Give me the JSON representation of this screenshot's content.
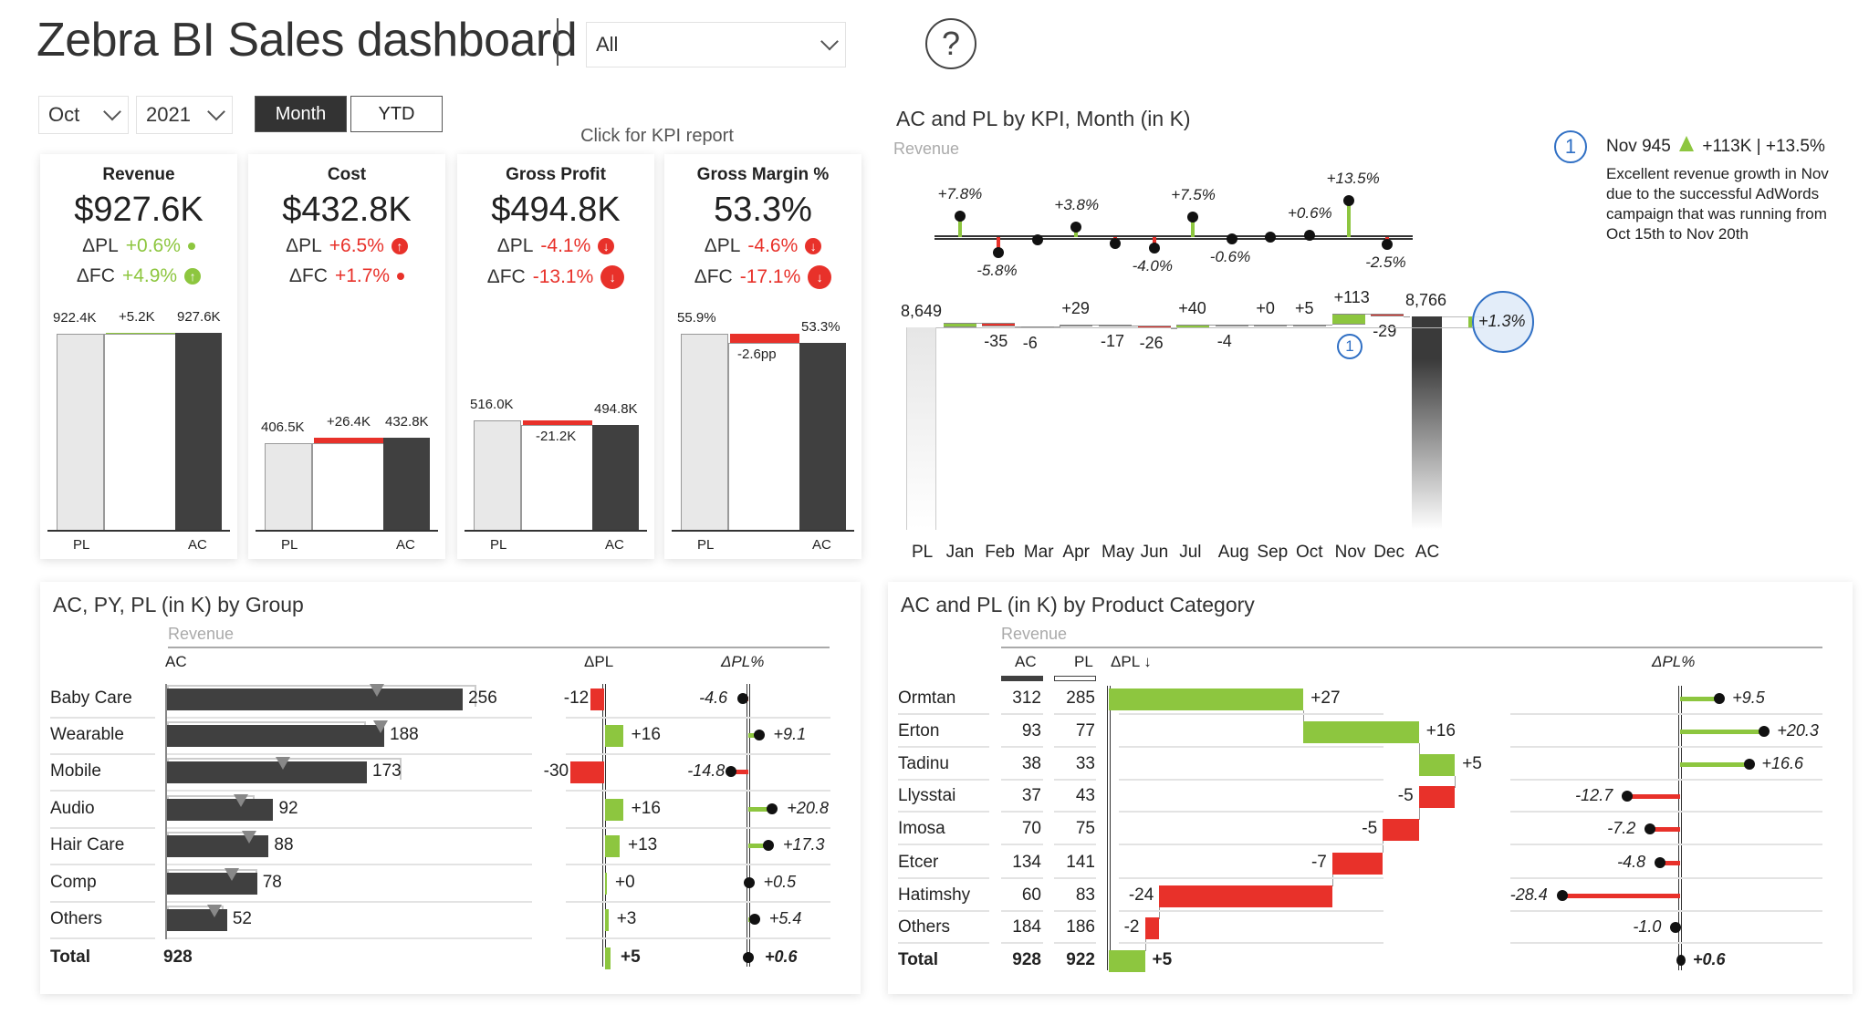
{
  "header": {
    "title": "Zebra BI Sales dashboard",
    "filter_value": "All",
    "help_glyph": "?",
    "month_value": "Oct",
    "year_value": "2021",
    "toggle_month": "Month",
    "toggle_ytd": "YTD",
    "kpi_link": "Click for KPI report"
  },
  "colors": {
    "positive": "#8dc63f",
    "negative": "#e8312a",
    "actual": "#404040",
    "plan": "#e8e8e8",
    "highlight": "#2f6fc4"
  },
  "kpis": [
    {
      "title": "Revenue",
      "value": "$927.6K",
      "dpl_label": "ΔPL",
      "dpl": "+0.6%",
      "dpl_sign": "pos",
      "dpl_icon": "dot-icon",
      "dfc_label": "ΔFC",
      "dfc": "+4.9%",
      "dfc_sign": "pos",
      "dfc_icon": "arrow-up-icon",
      "chart": {
        "pl": 922.4,
        "ac": 927.6,
        "pl_label": "922.4K",
        "delta_label": "+5.2K",
        "ac_label": "927.6K",
        "delta_sign": "pos",
        "x_pl": "PL",
        "x_ac": "AC"
      }
    },
    {
      "title": "Cost",
      "value": "$432.8K",
      "dpl_label": "ΔPL",
      "dpl": "+6.5%",
      "dpl_sign": "neg",
      "dpl_icon": "arrow-up-icon",
      "dfc_label": "ΔFC",
      "dfc": "+1.7%",
      "dfc_sign": "neg",
      "dfc_icon": "dot-icon",
      "chart": {
        "pl": 406.5,
        "ac": 432.8,
        "pl_label": "406.5K",
        "delta_label": "+26.4K",
        "ac_label": "432.8K",
        "delta_sign": "neg",
        "x_pl": "PL",
        "x_ac": "AC"
      }
    },
    {
      "title": "Gross Profit",
      "value": "$494.8K",
      "dpl_label": "ΔPL",
      "dpl": "-4.1%",
      "dpl_sign": "neg",
      "dpl_icon": "arrow-down-icon",
      "dfc_label": "ΔFC",
      "dfc": "-13.1%",
      "dfc_sign": "neg",
      "dfc_icon": "arrow-down-icon",
      "chart": {
        "pl": 516.0,
        "ac": 494.8,
        "pl_label": "516.0K",
        "delta_label": "-21.2K",
        "ac_label": "494.8K",
        "delta_sign": "neg",
        "x_pl": "PL",
        "x_ac": "AC"
      }
    },
    {
      "title": "Gross Margin %",
      "value": "53.3%",
      "dpl_label": "ΔPL",
      "dpl": "-4.6%",
      "dpl_sign": "neg",
      "dpl_icon": "arrow-down-icon",
      "dfc_label": "ΔFC",
      "dfc": "-17.1%",
      "dfc_sign": "neg",
      "dfc_icon": "arrow-down-icon",
      "chart": {
        "pl": 55.9,
        "ac": 53.3,
        "pl_label": "55.9%",
        "delta_label": "-2.6pp",
        "ac_label": "53.3%",
        "delta_sign": "neg",
        "x_pl": "PL",
        "x_ac": "AC"
      }
    }
  ],
  "monthly": {
    "title": "AC and PL by KPI, Month (in K)",
    "measure": "Revenue",
    "pl_label": "PL",
    "ac_label": "AC",
    "pl_value": 8649,
    "pl_value_label": "8,649",
    "ac_value": 8766,
    "ac_value_label": "8,766",
    "total_pct_label": "+1.3%",
    "marker": "1",
    "months": [
      {
        "m": "Jan",
        "delta": 47,
        "delta_label": "",
        "pct": 7.8,
        "pct_label": "+7.8%"
      },
      {
        "m": "Feb",
        "delta": -35,
        "delta_label": "-35",
        "pct": -5.8,
        "pct_label": "-5.8%"
      },
      {
        "m": "Mar",
        "delta": -6,
        "delta_label": "-6",
        "pct": -0.9,
        "pct_label": ""
      },
      {
        "m": "Apr",
        "delta": 29,
        "delta_label": "+29",
        "pct": 3.8,
        "pct_label": "+3.8%"
      },
      {
        "m": "May",
        "delta": -17,
        "delta_label": "-17",
        "pct": -2.4,
        "pct_label": ""
      },
      {
        "m": "Jun",
        "delta": -26,
        "delta_label": "-26",
        "pct": -4.0,
        "pct_label": "-4.0%"
      },
      {
        "m": "Jul",
        "delta": 40,
        "delta_label": "+40",
        "pct": 7.5,
        "pct_label": "+7.5%"
      },
      {
        "m": "Aug",
        "delta": -4,
        "delta_label": "-4",
        "pct": -0.6,
        "pct_label": "-0.6%"
      },
      {
        "m": "Sep",
        "delta": 0,
        "delta_label": "+0",
        "pct": 0,
        "pct_label": ""
      },
      {
        "m": "Oct",
        "delta": 5,
        "delta_label": "+5",
        "pct": 0.6,
        "pct_label": "+0.6%"
      },
      {
        "m": "Nov",
        "delta": 113,
        "delta_label": "+113",
        "pct": 13.5,
        "pct_label": "+13.5%"
      },
      {
        "m": "Dec",
        "delta": -29,
        "delta_label": "-29",
        "pct": -2.5,
        "pct_label": "-2.5%"
      }
    ]
  },
  "annotation": {
    "number": "1",
    "headline_a": "Nov 945",
    "headline_b": "+113K | +13.5%",
    "text": "Excellent revenue growth in Nov due to the successful AdWords campaign that was running from Oct 15th to Nov 20th"
  },
  "group": {
    "title": "AC, PY, PL (in K) by Group",
    "measure": "Revenue",
    "col_ac": "AC",
    "col_dpl": "ΔPL",
    "col_dplp": "ΔPL%",
    "rows": [
      {
        "name": "Baby Care",
        "ac": 256,
        "pl": 268,
        "py": 182,
        "dpl": -12,
        "dpl_label": "-12",
        "dplp": -4.6,
        "dplp_label": "-4.6"
      },
      {
        "name": "Wearable",
        "ac": 188,
        "pl": 172,
        "py": 185,
        "dpl": 16,
        "dpl_label": "+16",
        "dplp": 9.1,
        "dplp_label": "+9.1"
      },
      {
        "name": "Mobile",
        "ac": 173,
        "pl": 203,
        "py": 100,
        "dpl": -30,
        "dpl_label": "-30",
        "dplp": -14.8,
        "dplp_label": "-14.8"
      },
      {
        "name": "Audio",
        "ac": 92,
        "pl": 76,
        "py": 64,
        "dpl": 16,
        "dpl_label": "+16",
        "dplp": 20.8,
        "dplp_label": "+20.8"
      },
      {
        "name": "Hair Care",
        "ac": 88,
        "pl": 75,
        "py": 71,
        "dpl": 13,
        "dpl_label": "+13",
        "dplp": 17.3,
        "dplp_label": "+17.3"
      },
      {
        "name": "Comp",
        "ac": 78,
        "pl": 78,
        "py": 56,
        "dpl": 0,
        "dpl_label": "+0",
        "dplp": 0.5,
        "dplp_label": "+0.5"
      },
      {
        "name": "Others",
        "ac": 52,
        "pl": 49,
        "py": 41,
        "dpl": 3,
        "dpl_label": "+3",
        "dplp": 5.4,
        "dplp_label": "+5.4"
      }
    ],
    "total": {
      "name": "Total",
      "ac": "928",
      "dpl": 5,
      "dpl_label": "+5",
      "dplp": 0.6,
      "dplp_label": "+0.6"
    }
  },
  "product": {
    "title": "AC and PL (in K) by Product Category",
    "measure": "Revenue",
    "col_ac": "AC",
    "col_pl": "PL",
    "col_dpl": "ΔPL ↓",
    "col_dplp": "ΔPL%",
    "rows": [
      {
        "name": "Ormtan",
        "ac": "312",
        "pl": "285",
        "dpl": 27,
        "dpl_label": "+27",
        "dplp": 9.5,
        "dplp_label": "+9.5"
      },
      {
        "name": "Erton",
        "ac": "93",
        "pl": "77",
        "dpl": 16,
        "dpl_label": "+16",
        "dplp": 20.3,
        "dplp_label": "+20.3"
      },
      {
        "name": "Tadinu",
        "ac": "38",
        "pl": "33",
        "dpl": 5,
        "dpl_label": "+5",
        "dplp": 16.6,
        "dplp_label": "+16.6"
      },
      {
        "name": "Llysstai",
        "ac": "37",
        "pl": "43",
        "dpl": -5,
        "dpl_label": "-5",
        "dplp": -12.7,
        "dplp_label": "-12.7"
      },
      {
        "name": "Imosa",
        "ac": "70",
        "pl": "75",
        "dpl": -5,
        "dpl_label": "-5",
        "dplp": -7.2,
        "dplp_label": "-7.2"
      },
      {
        "name": "Etcer",
        "ac": "134",
        "pl": "141",
        "dpl": -7,
        "dpl_label": "-7",
        "dplp": -4.8,
        "dplp_label": "-4.8"
      },
      {
        "name": "Hatimshy",
        "ac": "60",
        "pl": "83",
        "dpl": -24,
        "dpl_label": "-24",
        "dplp": -28.4,
        "dplp_label": "-28.4"
      },
      {
        "name": "Others",
        "ac": "184",
        "pl": "186",
        "dpl": -2,
        "dpl_label": "-2",
        "dplp": -1.0,
        "dplp_label": "-1.0"
      }
    ],
    "total": {
      "name": "Total",
      "ac": "928",
      "pl": "922",
      "dpl": 5,
      "dpl_label": "+5",
      "dplp": 0.6,
      "dplp_label": "+0.6"
    }
  }
}
